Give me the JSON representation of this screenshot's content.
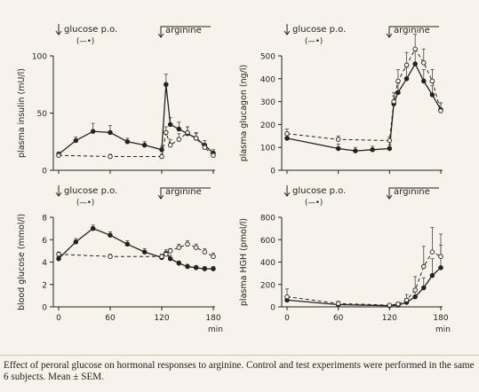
{
  "caption": "Effect of peroral glucose on hormonal responses to arginine. Control and test experiments were performed in the same 6 subjects. Mean ± SEM.",
  "chart_data": [
    {
      "type": "line",
      "ylabel": "plasma insulin (mU/l)",
      "xlabel": "",
      "xlim": [
        0,
        180
      ],
      "ylim": [
        0,
        100
      ],
      "xticks": [],
      "yticks": [
        0,
        50,
        100
      ],
      "annotations": {
        "glucose": "glucose p.o.",
        "glucose_symbol": "(—•)",
        "arginine": "arginine"
      },
      "series": [
        {
          "style": "solid-filled",
          "x": [
            0,
            20,
            40,
            60,
            80,
            100,
            120,
            125,
            130,
            140,
            150,
            160,
            170,
            180
          ],
          "y": [
            14,
            26,
            34,
            33,
            25,
            22,
            18,
            75,
            40,
            36,
            32,
            28,
            22,
            15
          ],
          "err": [
            2,
            3,
            7,
            6,
            3,
            3,
            3,
            9,
            6,
            6,
            6,
            5,
            4,
            3
          ]
        },
        {
          "style": "dashed-open",
          "x": [
            0,
            60,
            120,
            125,
            130,
            140,
            150,
            160,
            170,
            180
          ],
          "y": [
            13,
            12,
            12,
            33,
            22,
            27,
            33,
            28,
            20,
            13
          ],
          "err": [
            2,
            2,
            2,
            5,
            5,
            5,
            5,
            4,
            3,
            2
          ]
        }
      ]
    },
    {
      "type": "line",
      "ylabel": "plasma glucagon (ng/l)",
      "xlabel": "",
      "xlim": [
        0,
        180
      ],
      "ylim": [
        0,
        500
      ],
      "xticks": [],
      "yticks": [
        0,
        100,
        200,
        300,
        400,
        500
      ],
      "annotations": {
        "glucose": "glucose p.o.",
        "glucose_symbol": "(—•)",
        "arginine": "arginine"
      },
      "series": [
        {
          "style": "solid-filled",
          "x": [
            0,
            60,
            80,
            100,
            120,
            125,
            130,
            140,
            150,
            160,
            170,
            180
          ],
          "y": [
            140,
            95,
            85,
            90,
            95,
            290,
            340,
            400,
            465,
            390,
            330,
            265
          ],
          "err": [
            20,
            20,
            15,
            15,
            15,
            35,
            40,
            50,
            60,
            50,
            40,
            30
          ]
        },
        {
          "style": "dashed-open",
          "x": [
            0,
            60,
            120,
            125,
            130,
            140,
            150,
            160,
            170,
            180
          ],
          "y": [
            160,
            135,
            130,
            300,
            390,
            460,
            530,
            470,
            390,
            260
          ],
          "err": [
            20,
            15,
            15,
            40,
            50,
            55,
            65,
            60,
            50,
            35
          ]
        }
      ]
    },
    {
      "type": "line",
      "ylabel": "blood glucose (mmol/l)",
      "xlabel": "min",
      "xlim": [
        0,
        180
      ],
      "ylim": [
        0,
        8
      ],
      "xticks": [
        0,
        60,
        120,
        180
      ],
      "yticks": [
        0,
        2,
        4,
        6,
        8
      ],
      "annotations": {
        "glucose": "glucose p.o.",
        "glucose_symbol": "(—•)",
        "arginine": "arginine"
      },
      "series": [
        {
          "style": "solid-filled",
          "x": [
            0,
            20,
            40,
            60,
            80,
            100,
            120,
            125,
            130,
            140,
            150,
            160,
            170,
            180
          ],
          "y": [
            4.3,
            5.8,
            7.0,
            6.4,
            5.6,
            4.9,
            4.4,
            4.8,
            4.3,
            3.9,
            3.6,
            3.5,
            3.4,
            3.4
          ],
          "err": [
            0.2,
            0.3,
            0.3,
            0.3,
            0.3,
            0.3,
            0.3,
            0.3,
            0.3,
            0.2,
            0.2,
            0.2,
            0.2,
            0.2
          ]
        },
        {
          "style": "dashed-open",
          "x": [
            0,
            60,
            120,
            125,
            130,
            140,
            150,
            160,
            170,
            180
          ],
          "y": [
            4.7,
            4.5,
            4.5,
            4.7,
            5.0,
            5.3,
            5.6,
            5.3,
            4.9,
            4.5
          ],
          "err": [
            0.2,
            0.2,
            0.2,
            0.2,
            0.2,
            0.3,
            0.3,
            0.3,
            0.3,
            0.3
          ]
        }
      ]
    },
    {
      "type": "line",
      "ylabel": "plasma HGH (pmol/l)",
      "xlabel": "min",
      "xlim": [
        0,
        180
      ],
      "ylim": [
        0,
        800
      ],
      "xticks": [
        0,
        60,
        120,
        180
      ],
      "yticks": [
        0,
        200,
        400,
        600,
        800
      ],
      "annotations": {
        "glucose": "glucose p.o.",
        "glucose_symbol": "(—•)",
        "arginine": "arginine"
      },
      "series": [
        {
          "style": "solid-filled",
          "x": [
            0,
            60,
            120,
            130,
            140,
            150,
            160,
            170,
            180
          ],
          "y": [
            60,
            20,
            10,
            15,
            40,
            90,
            170,
            280,
            350
          ],
          "err": [
            40,
            15,
            10,
            10,
            30,
            60,
            90,
            150,
            200
          ]
        },
        {
          "style": "dashed-open",
          "x": [
            0,
            60,
            120,
            130,
            140,
            150,
            160,
            170,
            180
          ],
          "y": [
            90,
            30,
            15,
            25,
            60,
            150,
            360,
            490,
            450
          ],
          "err": [
            70,
            20,
            10,
            15,
            50,
            120,
            180,
            220,
            200
          ]
        }
      ]
    }
  ]
}
